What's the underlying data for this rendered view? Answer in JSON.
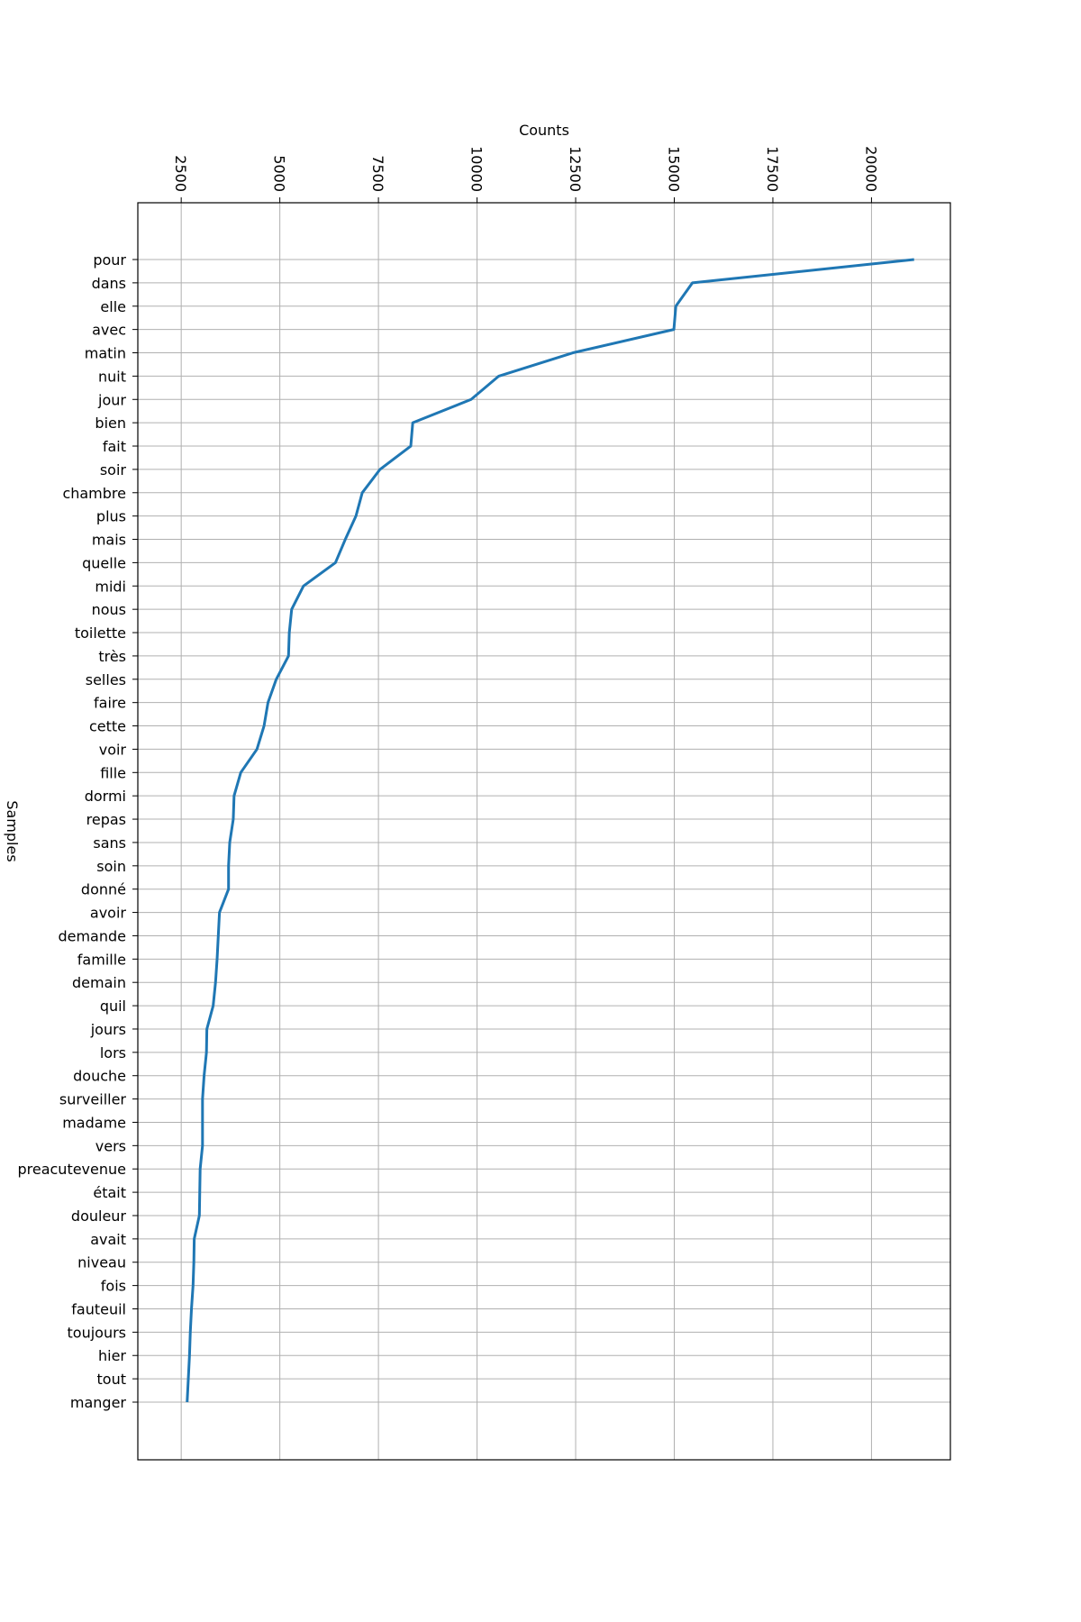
{
  "chart_data": {
    "type": "line",
    "title": "",
    "xlabel": "Counts",
    "ylabel": "Samples",
    "xlim": [
      1400,
      22000
    ],
    "x_ticks": [
      2500,
      5000,
      7500,
      10000,
      12500,
      15000,
      17500,
      20000
    ],
    "grid": true,
    "legend": "none",
    "colors": {
      "line": "#1f77b4",
      "grid": "#b0b0b0",
      "axis": "#000000"
    },
    "series": [
      {
        "categories": [
          "pour",
          "dans",
          "elle",
          "avec",
          "matin",
          "nuit",
          "jour",
          "bien",
          "fait",
          "soir",
          "chambre",
          "plus",
          "mais",
          "quelle",
          "midi",
          "nous",
          "toilette",
          "très",
          "selles",
          "faire",
          "cette",
          "voir",
          "fille",
          "dormi",
          "repas",
          "sans",
          "soin",
          "donné",
          "avoir",
          "demande",
          "famille",
          "demain",
          "quil",
          "jours",
          "lors",
          "douche",
          "surveiller",
          "madame",
          "vers",
          "preacutevenue",
          "était",
          "douleur",
          "avait",
          "niveau",
          "fois",
          "fauteuil",
          "toujours",
          "hier",
          "tout",
          "manger"
        ],
        "values": [
          21080,
          15460,
          15040,
          14990,
          12430,
          10550,
          9850,
          8370,
          8320,
          7540,
          7090,
          6930,
          6660,
          6410,
          5600,
          5300,
          5240,
          5220,
          4910,
          4700,
          4600,
          4420,
          4010,
          3840,
          3820,
          3730,
          3700,
          3700,
          3470,
          3440,
          3410,
          3370,
          3310,
          3150,
          3140,
          3080,
          3040,
          3040,
          3040,
          2980,
          2970,
          2960,
          2830,
          2820,
          2800,
          2760,
          2730,
          2710,
          2680,
          2650
        ]
      }
    ]
  }
}
